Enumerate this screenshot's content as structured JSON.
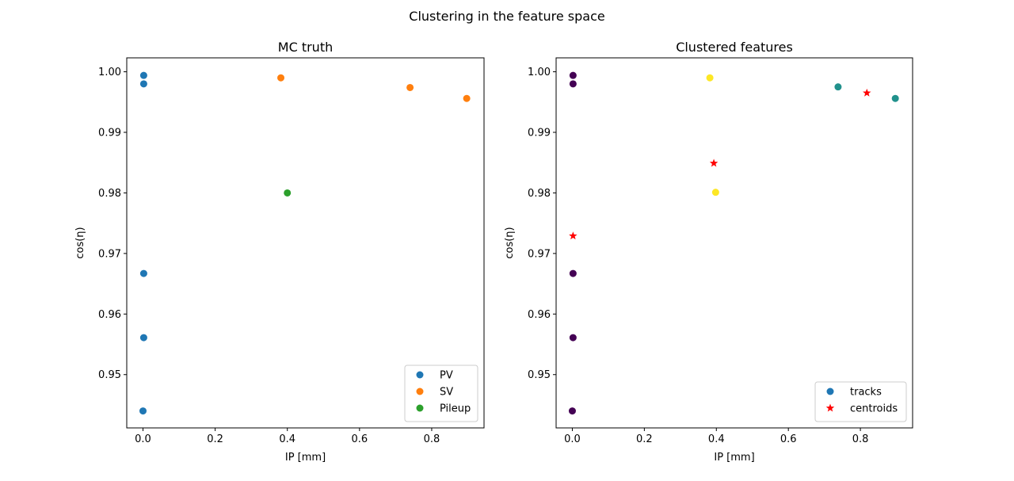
{
  "suptitle": "Clustering in the feature space",
  "chart_data": [
    {
      "type": "scatter",
      "title": "MC truth",
      "xlabel": "IP [mm]",
      "ylabel": "cos(η)",
      "xlim": [
        -0.045,
        0.945
      ],
      "ylim": [
        0.9412,
        1.0023
      ],
      "xticks": [
        0.0,
        0.2,
        0.4,
        0.6,
        0.8
      ],
      "xtick_labels": [
        "0.0",
        "0.2",
        "0.4",
        "0.6",
        "0.8"
      ],
      "yticks": [
        0.95,
        0.96,
        0.97,
        0.98,
        0.99,
        1.0
      ],
      "ytick_labels": [
        "0.95",
        "0.96",
        "0.97",
        "0.98",
        "0.99",
        "1.00"
      ],
      "grid": false,
      "legend_position": "lower right",
      "series": [
        {
          "name": "PV",
          "color": "#1f77b4",
          "marker": "circle",
          "x": [
            0.002,
            0.002,
            0.002,
            0.002,
            0.0
          ],
          "y": [
            0.9994,
            0.998,
            0.9667,
            0.9561,
            0.944
          ]
        },
        {
          "name": "SV",
          "color": "#ff7f0e",
          "marker": "circle",
          "x": [
            0.382,
            0.74,
            0.897
          ],
          "y": [
            0.999,
            0.9974,
            0.9956
          ]
        },
        {
          "name": "Pileup",
          "color": "#2ca02c",
          "marker": "circle",
          "x": [
            0.4
          ],
          "y": [
            0.98
          ]
        }
      ]
    },
    {
      "type": "scatter",
      "title": "Clustered features",
      "xlabel": "IP [mm]",
      "ylabel": "cos(η)",
      "xlim": [
        -0.045,
        0.945
      ],
      "ylim": [
        0.9412,
        1.0023
      ],
      "xticks": [
        0.0,
        0.2,
        0.4,
        0.6,
        0.8
      ],
      "xtick_labels": [
        "0.0",
        "0.2",
        "0.4",
        "0.6",
        "0.8"
      ],
      "yticks": [
        0.95,
        0.96,
        0.97,
        0.98,
        0.99,
        1.0
      ],
      "ytick_labels": [
        "0.95",
        "0.96",
        "0.97",
        "0.98",
        "0.99",
        "1.00"
      ],
      "grid": false,
      "legend_position": "lower right",
      "series": [
        {
          "name": "tracks",
          "color": "#1f77b4",
          "marker": "circle",
          "x": [
            0.002,
            0.002,
            0.002,
            0.002,
            0.0,
            0.382,
            0.398,
            0.738,
            0.897
          ],
          "y": [
            0.9994,
            0.998,
            0.9667,
            0.9561,
            0.944,
            0.999,
            0.9801,
            0.9975,
            0.9956
          ],
          "point_colors": [
            "#440154",
            "#440154",
            "#440154",
            "#440154",
            "#440154",
            "#fde725",
            "#fde725",
            "#21918c",
            "#21918c"
          ]
        },
        {
          "name": "centroids",
          "color": "#ff0000",
          "marker": "star",
          "x": [
            0.002,
            0.393,
            0.818
          ],
          "y": [
            0.9729,
            0.9849,
            0.9965
          ]
        }
      ]
    }
  ]
}
